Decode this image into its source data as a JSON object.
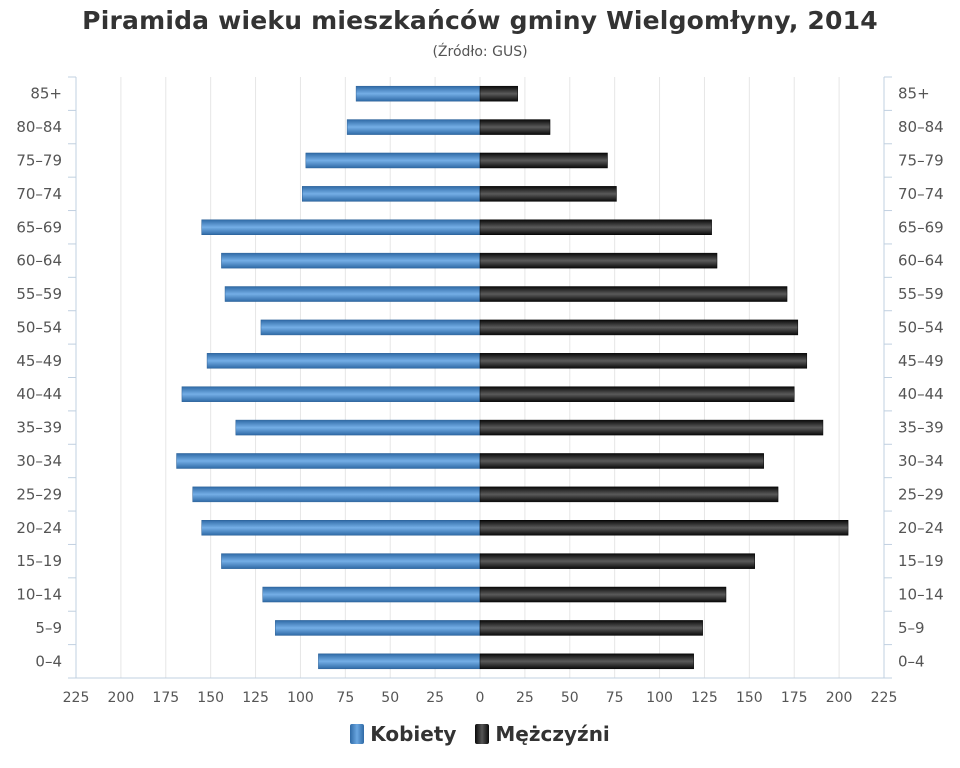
{
  "title": "Piramida wieku mieszkańców gminy Wielgomłyny, 2014",
  "subtitle": "(Źródło: GUS)",
  "legend": {
    "female": "Kobiety",
    "male": "Mężczyźni"
  },
  "colors": {
    "female": "#4682c0",
    "male": "#1a1a1a",
    "grid": "#e6e6e6",
    "axis": "#c0d0e0",
    "text": "#555555"
  },
  "chart_data": {
    "type": "bar",
    "orientation": "horizontal-population-pyramid",
    "title": "Piramida wieku mieszkańców gminy Wielgomłyny, 2014",
    "subtitle": "(Źródło: GUS)",
    "categories": [
      "85+",
      "80–84",
      "75–79",
      "70–74",
      "65–69",
      "60–64",
      "55–59",
      "50–54",
      "45–49",
      "40–44",
      "35–39",
      "30–34",
      "25–29",
      "20–24",
      "15–19",
      "10–14",
      "5–9",
      "0–4"
    ],
    "series": [
      {
        "name": "Kobiety",
        "side": "left",
        "values": [
          69,
          74,
          97,
          99,
          155,
          144,
          142,
          122,
          152,
          166,
          136,
          169,
          160,
          155,
          144,
          121,
          114,
          90
        ]
      },
      {
        "name": "Mężczyźni",
        "side": "right",
        "values": [
          21,
          39,
          71,
          76,
          129,
          132,
          171,
          177,
          182,
          175,
          191,
          158,
          166,
          205,
          153,
          137,
          124,
          119
        ]
      }
    ],
    "xlim": [
      -225,
      225
    ],
    "x_ticks": [
      "225",
      "200",
      "175",
      "150",
      "125",
      "100",
      "75",
      "50",
      "25",
      "0",
      "25",
      "50",
      "75",
      "100",
      "125",
      "150",
      "175",
      "200",
      "225"
    ],
    "grid": true,
    "legend_position": "bottom-center"
  }
}
